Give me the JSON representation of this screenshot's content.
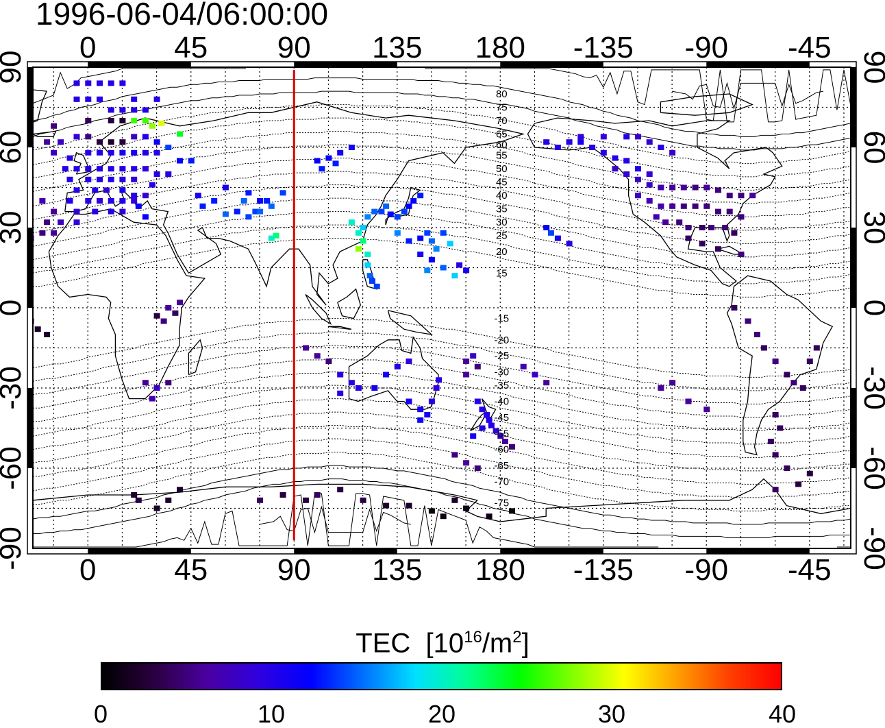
{
  "title": "1996-06-04/06:00:00",
  "map": {
    "projection": "equirectangular",
    "lon_min": -24,
    "lon_max": 333,
    "lat_min": -90,
    "lat_max": 90,
    "grid": true,
    "top_lon_ticks": [
      "0",
      "45",
      "90",
      "135",
      "180",
      "-135",
      "-90",
      "-45"
    ],
    "bottom_lon_ticks": [
      "0",
      "45",
      "90",
      "135",
      "180",
      "-135",
      "-90",
      "-45"
    ],
    "left_lat_ticks": [
      "90",
      "60",
      "30",
      "0",
      "-30",
      "-60",
      "-90"
    ],
    "right_lat_ticks": [
      "90",
      "60",
      "30",
      "0",
      "-30",
      "-60",
      "-90"
    ],
    "lon_tick_values": [
      0,
      45,
      90,
      135,
      180,
      225,
      270,
      315
    ],
    "lat_tick_values": [
      90,
      60,
      30,
      0,
      -30,
      -60,
      -90
    ],
    "marker_line": {
      "lon": 90,
      "color": "#e00000"
    },
    "magnetic_lat_labels": [
      {
        "label": "80",
        "lat": 80
      },
      {
        "label": "75",
        "lat": 75
      },
      {
        "label": "70",
        "lat": 70
      },
      {
        "label": "65",
        "lat": 65
      },
      {
        "label": "60",
        "lat": 61
      },
      {
        "label": "55",
        "lat": 57
      },
      {
        "label": "50",
        "lat": 52
      },
      {
        "label": "45",
        "lat": 47
      },
      {
        "label": "40",
        "lat": 42
      },
      {
        "label": "35",
        "lat": 37
      },
      {
        "label": "30",
        "lat": 32
      },
      {
        "label": "25",
        "lat": 27
      },
      {
        "label": "20",
        "lat": 21
      },
      {
        "label": "15",
        "lat": 13
      },
      {
        "label": "-15",
        "lat": -4
      },
      {
        "label": "-20",
        "lat": -12
      },
      {
        "label": "-25",
        "lat": -18
      },
      {
        "label": "-30",
        "lat": -24
      },
      {
        "label": "-35",
        "lat": -29
      },
      {
        "label": "-40",
        "lat": -35
      },
      {
        "label": "-45",
        "lat": -41
      },
      {
        "label": "-55",
        "lat": -47
      },
      {
        "label": "-60",
        "lat": -53
      },
      {
        "label": "-65",
        "lat": -59
      },
      {
        "label": "-70",
        "lat": -65
      },
      {
        "label": "-75",
        "lat": -73
      }
    ]
  },
  "tec_points": [
    [
      -5,
      84,
      10
    ],
    [
      0,
      84,
      10
    ],
    [
      5,
      84,
      10
    ],
    [
      10,
      84,
      10
    ],
    [
      15,
      84,
      10
    ],
    [
      -5,
      78,
      10
    ],
    [
      0,
      78,
      10
    ],
    [
      5,
      78,
      10
    ],
    [
      20,
      78,
      10
    ],
    [
      30,
      78,
      10
    ],
    [
      10,
      74,
      10
    ],
    [
      15,
      74,
      10
    ],
    [
      20,
      74,
      10
    ],
    [
      25,
      74,
      10
    ],
    [
      -15,
      68,
      5
    ],
    [
      0,
      70,
      4
    ],
    [
      10,
      70,
      3
    ],
    [
      15,
      70,
      2
    ],
    [
      20,
      70,
      26
    ],
    [
      25,
      70,
      26
    ],
    [
      32,
      69,
      30
    ],
    [
      28,
      68,
      28
    ],
    [
      40,
      65,
      24
    ],
    [
      -18,
      62,
      6
    ],
    [
      -12,
      62,
      8
    ],
    [
      -5,
      64,
      9
    ],
    [
      0,
      64,
      5
    ],
    [
      5,
      62,
      3
    ],
    [
      10,
      62,
      2
    ],
    [
      15,
      62,
      3
    ],
    [
      20,
      64,
      8
    ],
    [
      25,
      64,
      10
    ],
    [
      30,
      62,
      12
    ],
    [
      35,
      60,
      14
    ],
    [
      -15,
      58,
      8
    ],
    [
      -8,
      56,
      10
    ],
    [
      0,
      58,
      10
    ],
    [
      5,
      58,
      10
    ],
    [
      10,
      58,
      10
    ],
    [
      15,
      58,
      11
    ],
    [
      20,
      58,
      11
    ],
    [
      25,
      58,
      10
    ],
    [
      30,
      58,
      10
    ],
    [
      40,
      55,
      12
    ],
    [
      45,
      55,
      13
    ],
    [
      -10,
      52,
      10
    ],
    [
      -5,
      52,
      10
    ],
    [
      0,
      52,
      10
    ],
    [
      5,
      52,
      10
    ],
    [
      10,
      52,
      10
    ],
    [
      15,
      52,
      10
    ],
    [
      20,
      52,
      10
    ],
    [
      25,
      52,
      9
    ],
    [
      30,
      50,
      10
    ],
    [
      35,
      50,
      10
    ],
    [
      -8,
      48,
      10
    ],
    [
      0,
      48,
      10
    ],
    [
      5,
      48,
      10
    ],
    [
      10,
      48,
      10
    ],
    [
      15,
      48,
      10
    ],
    [
      20,
      48,
      9
    ],
    [
      28,
      46,
      10
    ],
    [
      -5,
      44,
      10
    ],
    [
      3,
      44,
      10
    ],
    [
      8,
      44,
      9
    ],
    [
      15,
      44,
      11
    ],
    [
      20,
      42,
      10
    ],
    [
      25,
      42,
      9
    ],
    [
      -20,
      40,
      7
    ],
    [
      -8,
      40,
      10
    ],
    [
      0,
      40,
      10
    ],
    [
      5,
      40,
      9
    ],
    [
      10,
      40,
      10
    ],
    [
      15,
      40,
      10
    ],
    [
      20,
      40,
      9
    ],
    [
      22,
      38,
      12
    ],
    [
      -15,
      36,
      6
    ],
    [
      -5,
      36,
      9
    ],
    [
      3,
      36,
      10
    ],
    [
      10,
      36,
      10
    ],
    [
      15,
      36,
      9
    ],
    [
      25,
      34,
      12
    ],
    [
      -18,
      32,
      5
    ],
    [
      -12,
      32,
      8
    ],
    [
      -5,
      32,
      9
    ],
    [
      -20,
      28,
      5
    ],
    [
      -15,
      28,
      6
    ],
    [
      -25,
      26,
      4
    ],
    [
      80,
      26,
      20
    ],
    [
      82,
      27,
      22
    ],
    [
      70,
      34,
      14
    ],
    [
      73,
      36,
      14
    ],
    [
      75,
      40,
      12
    ],
    [
      78,
      40,
      13
    ],
    [
      80,
      38,
      15
    ],
    [
      65,
      36,
      13
    ],
    [
      60,
      35,
      15
    ],
    [
      55,
      40,
      13
    ],
    [
      50,
      38,
      13
    ],
    [
      48,
      42,
      11
    ],
    [
      60,
      45,
      11
    ],
    [
      85,
      43,
      14
    ],
    [
      70,
      43,
      13
    ],
    [
      68,
      40,
      15
    ],
    [
      75,
      36,
      15
    ],
    [
      100,
      55,
      12
    ],
    [
      105,
      56,
      12
    ],
    [
      110,
      58,
      11
    ],
    [
      115,
      60,
      11
    ],
    [
      102,
      52,
      13
    ],
    [
      108,
      54,
      13
    ],
    [
      115,
      32,
      20
    ],
    [
      118,
      28,
      20
    ],
    [
      120,
      30,
      18
    ],
    [
      122,
      34,
      16
    ],
    [
      125,
      36,
      15
    ],
    [
      128,
      36,
      14
    ],
    [
      130,
      38,
      15
    ],
    [
      132,
      35,
      12
    ],
    [
      135,
      34,
      14
    ],
    [
      138,
      36,
      14
    ],
    [
      140,
      38,
      12
    ],
    [
      142,
      40,
      12
    ],
    [
      145,
      42,
      13
    ],
    [
      118,
      22,
      28
    ],
    [
      120,
      25,
      22
    ],
    [
      122,
      20,
      20
    ],
    [
      122,
      16,
      18
    ],
    [
      123,
      12,
      15
    ],
    [
      124,
      10,
      14
    ],
    [
      126,
      8,
      14
    ],
    [
      135,
      28,
      16
    ],
    [
      140,
      25,
      13
    ],
    [
      145,
      26,
      12
    ],
    [
      148,
      28,
      14
    ],
    [
      150,
      25,
      15
    ],
    [
      152,
      22,
      16
    ],
    [
      155,
      28,
      14
    ],
    [
      158,
      24,
      18
    ],
    [
      145,
      20,
      11
    ],
    [
      150,
      18,
      12
    ],
    [
      155,
      15,
      15
    ],
    [
      148,
      14,
      16
    ],
    [
      160,
      12,
      18
    ],
    [
      162,
      16,
      10
    ],
    [
      165,
      14,
      11
    ],
    [
      -25,
      -5,
      2
    ],
    [
      -22,
      -8,
      2
    ],
    [
      -18,
      -10,
      2
    ],
    [
      35,
      0,
      6
    ],
    [
      38,
      -2,
      4
    ],
    [
      40,
      2,
      6
    ],
    [
      33,
      -5,
      5
    ],
    [
      30,
      -3,
      3
    ],
    [
      25,
      -28,
      6
    ],
    [
      30,
      -30,
      8
    ],
    [
      35,
      -28,
      5
    ],
    [
      28,
      -34,
      7
    ],
    [
      95,
      -15,
      6
    ],
    [
      100,
      -18,
      6
    ],
    [
      105,
      -20,
      5
    ],
    [
      110,
      -25,
      10
    ],
    [
      115,
      -28,
      10
    ],
    [
      110,
      -32,
      10
    ],
    [
      118,
      -30,
      10
    ],
    [
      125,
      -30,
      11
    ],
    [
      130,
      -25,
      11
    ],
    [
      135,
      -22,
      10
    ],
    [
      140,
      -20,
      9
    ],
    [
      140,
      -35,
      11
    ],
    [
      145,
      -38,
      11
    ],
    [
      150,
      -35,
      10
    ],
    [
      148,
      -40,
      11
    ],
    [
      145,
      -42,
      12
    ],
    [
      152,
      -30,
      9
    ],
    [
      153,
      -27,
      10
    ],
    [
      165,
      -20,
      6
    ],
    [
      168,
      -18,
      8
    ],
    [
      165,
      -25,
      6
    ],
    [
      170,
      -22,
      5
    ],
    [
      170,
      -35,
      10
    ],
    [
      172,
      -38,
      10
    ],
    [
      174,
      -40,
      10
    ],
    [
      175,
      -42,
      10
    ],
    [
      176,
      -44,
      10
    ],
    [
      178,
      -46,
      9
    ],
    [
      180,
      -48,
      8
    ],
    [
      182,
      -50,
      6
    ],
    [
      185,
      -52,
      5
    ],
    [
      172,
      -45,
      10
    ],
    [
      168,
      -48,
      11
    ],
    [
      160,
      -55,
      5
    ],
    [
      165,
      -58,
      6
    ],
    [
      170,
      -60,
      5
    ],
    [
      190,
      -22,
      7
    ],
    [
      195,
      -25,
      8
    ],
    [
      200,
      -28,
      6
    ],
    [
      200,
      62,
      10
    ],
    [
      205,
      60,
      10
    ],
    [
      210,
      62,
      10
    ],
    [
      215,
      62,
      11
    ],
    [
      220,
      60,
      10
    ],
    [
      225,
      58,
      10
    ],
    [
      230,
      56,
      10
    ],
    [
      235,
      55,
      10
    ],
    [
      240,
      52,
      10
    ],
    [
      245,
      50,
      9
    ],
    [
      215,
      64,
      9
    ],
    [
      225,
      64,
      9
    ],
    [
      235,
      64,
      10
    ],
    [
      240,
      64,
      8
    ],
    [
      245,
      62,
      9
    ],
    [
      250,
      60,
      10
    ],
    [
      255,
      58,
      8
    ],
    [
      230,
      52,
      8
    ],
    [
      235,
      50,
      9
    ],
    [
      240,
      48,
      8
    ],
    [
      245,
      46,
      8
    ],
    [
      250,
      45,
      7
    ],
    [
      255,
      45,
      6
    ],
    [
      260,
      45,
      6
    ],
    [
      265,
      45,
      5
    ],
    [
      270,
      45,
      6
    ],
    [
      275,
      44,
      5
    ],
    [
      280,
      42,
      5
    ],
    [
      285,
      42,
      5
    ],
    [
      290,
      42,
      6
    ],
    [
      240,
      42,
      8
    ],
    [
      245,
      40,
      7
    ],
    [
      250,
      38,
      7
    ],
    [
      255,
      38,
      6
    ],
    [
      260,
      38,
      5
    ],
    [
      265,
      38,
      5
    ],
    [
      270,
      38,
      5
    ],
    [
      275,
      36,
      5
    ],
    [
      280,
      36,
      5
    ],
    [
      285,
      34,
      5
    ],
    [
      248,
      34,
      7
    ],
    [
      252,
      32,
      6
    ],
    [
      258,
      32,
      5
    ],
    [
      262,
      30,
      5
    ],
    [
      268,
      30,
      4
    ],
    [
      272,
      30,
      5
    ],
    [
      278,
      30,
      5
    ],
    [
      282,
      28,
      4
    ],
    [
      262,
      26,
      4
    ],
    [
      268,
      24,
      4
    ],
    [
      275,
      22,
      4
    ],
    [
      285,
      20,
      5
    ],
    [
      200,
      30,
      12
    ],
    [
      202,
      28,
      14
    ],
    [
      205,
      26,
      11
    ],
    [
      210,
      24,
      10
    ],
    [
      282,
      0,
      4
    ],
    [
      288,
      -5,
      5
    ],
    [
      292,
      -10,
      5
    ],
    [
      295,
      -15,
      4
    ],
    [
      300,
      -20,
      5
    ],
    [
      305,
      -25,
      4
    ],
    [
      308,
      -28,
      5
    ],
    [
      312,
      -30,
      4
    ],
    [
      315,
      -20,
      4
    ],
    [
      318,
      -15,
      4
    ],
    [
      300,
      -40,
      4
    ],
    [
      302,
      -45,
      4
    ],
    [
      298,
      -50,
      4
    ],
    [
      300,
      -55,
      4
    ],
    [
      305,
      -60,
      4
    ],
    [
      300,
      -68,
      4
    ],
    [
      310,
      -66,
      3
    ],
    [
      315,
      -62,
      3
    ],
    [
      250,
      -30,
      6
    ],
    [
      255,
      -28,
      6
    ],
    [
      262,
      -35,
      6
    ],
    [
      270,
      -38,
      6
    ],
    [
      20,
      -70,
      2
    ],
    [
      22,
      -72,
      3
    ],
    [
      30,
      -75,
      2
    ],
    [
      35,
      -72,
      2
    ],
    [
      40,
      -68,
      2
    ],
    [
      100,
      -70,
      4
    ],
    [
      110,
      -68,
      3
    ],
    [
      120,
      -72,
      3
    ],
    [
      130,
      -74,
      2
    ],
    [
      140,
      -74,
      2
    ],
    [
      150,
      -76,
      1
    ],
    [
      155,
      -78,
      1
    ],
    [
      160,
      -72,
      2
    ],
    [
      165,
      -75,
      1
    ],
    [
      175,
      -78,
      1
    ],
    [
      185,
      -76,
      1
    ],
    [
      75,
      -72,
      4
    ],
    [
      85,
      -70,
      3
    ],
    [
      95,
      -72,
      3
    ]
  ],
  "colorbar": {
    "title": "TEC",
    "unit_prefix": "[10",
    "unit_exp1": "16",
    "unit_mid": "/m",
    "unit_exp2": "2",
    "unit_suffix": "]",
    "min": 0,
    "max": 40,
    "ticks": [
      "0",
      "10",
      "20",
      "30",
      "40"
    ],
    "colors": [
      "#000000",
      "#2a0040",
      "#4a00a0",
      "#3000e0",
      "#0000ff",
      "#0070ff",
      "#00e0ff",
      "#00ff90",
      "#00ff00",
      "#80ff00",
      "#ffff00",
      "#ffa000",
      "#ff4000",
      "#ff0000"
    ]
  }
}
